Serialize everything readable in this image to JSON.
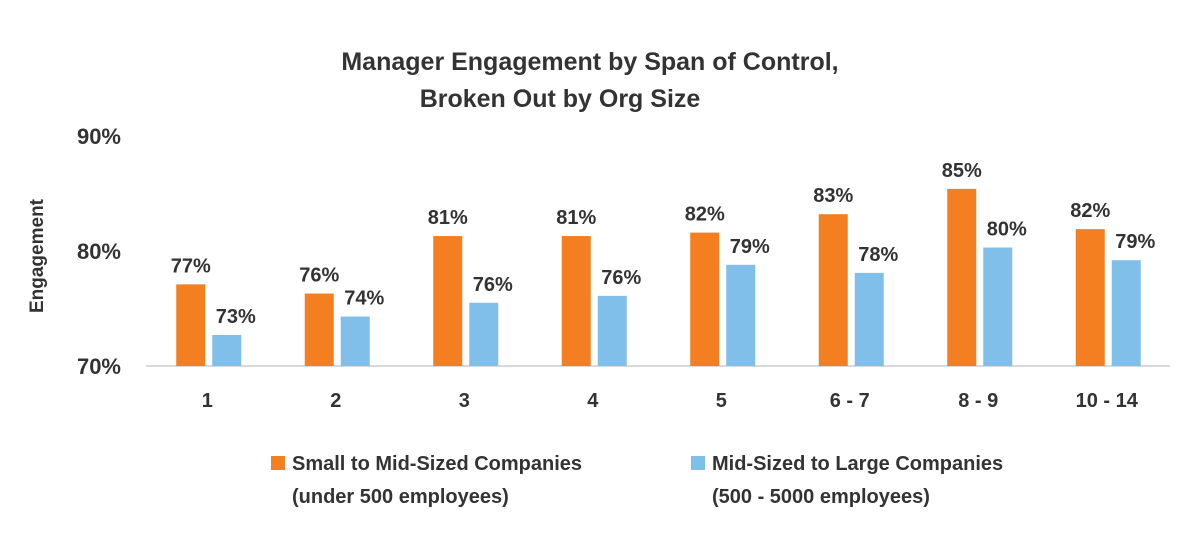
{
  "chart_data": {
    "type": "bar",
    "title": "Manager Engagement by Span of Control,",
    "subtitle": "Broken Out by Org Size",
    "xlabel": "",
    "ylabel": "Engagement",
    "ylim": [
      70,
      90
    ],
    "yticks": [
      "70%",
      "80%",
      "90%"
    ],
    "grid": false,
    "legend_position": "bottom",
    "categories": [
      "1",
      "2",
      "3",
      "4",
      "5",
      "6 - 7",
      "8 - 9",
      "10 - 14"
    ],
    "series": [
      {
        "name": "Small to Mid-Sized Companies",
        "name_line2": "(under 500 employees)",
        "color": "#F47F20",
        "values": [
          77.1,
          76.3,
          81.3,
          81.3,
          81.6,
          83.2,
          85.4,
          81.9
        ],
        "labels": [
          "77%",
          "76%",
          "81%",
          "81%",
          "82%",
          "83%",
          "85%",
          "82%"
        ]
      },
      {
        "name": "Mid-Sized to Large Companies",
        "name_line2": "(500 - 5000 employees)",
        "color": "#80BFEA",
        "values": [
          72.7,
          74.3,
          75.5,
          76.1,
          78.8,
          78.1,
          80.3,
          79.2
        ],
        "labels": [
          "73%",
          "74%",
          "76%",
          "76%",
          "79%",
          "78%",
          "80%",
          "79%"
        ]
      }
    ]
  }
}
